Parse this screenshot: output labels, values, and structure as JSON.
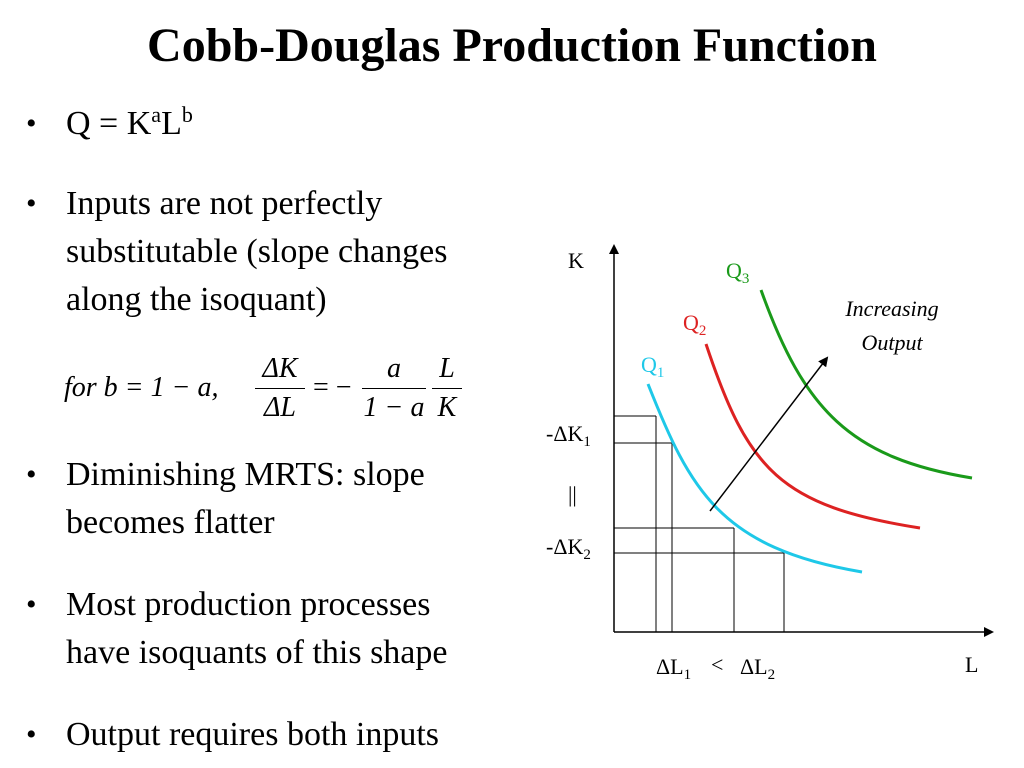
{
  "title": "Cobb-Douglas Production Function",
  "bullets": {
    "b1": {
      "q": "Q = K",
      "exp_a": "a",
      "l": "L",
      "exp_b": "b"
    },
    "b2": [
      "Inputs are not perfectly",
      "substitutable (slope changes",
      "along the isoquant)"
    ],
    "b3": [
      "Diminishing MRTS: slope",
      "becomes flatter"
    ],
    "b4": [
      "Most production processes",
      "have isoquants of this shape"
    ],
    "b5": "Output requires both inputs"
  },
  "formula": {
    "lhs": "for b = 1 − a,",
    "frac1_num": "ΔK",
    "frac1_den": "ΔL",
    "equals": "= −",
    "frac2_num": "a",
    "frac2_den": "1 − a",
    "frac3_num": "L",
    "frac3_den": "K"
  },
  "diagram": {
    "axis_y": "K",
    "axis_x": "L",
    "curves": [
      {
        "name": "Q",
        "sub": "1",
        "color": "#1ec8e8"
      },
      {
        "name": "Q",
        "sub": "2",
        "color": "#dd2222"
      },
      {
        "name": "Q",
        "sub": "3",
        "color": "#1a9a1a"
      }
    ],
    "arrow_label": [
      "Increasing",
      "Output"
    ],
    "dk1": {
      "pre": "-ΔK",
      "sub": "1"
    },
    "dk_equal": "||",
    "dk2": {
      "pre": "-ΔK",
      "sub": "2"
    },
    "dl1": {
      "pre": "ΔL",
      "sub": "1"
    },
    "dl_lt": "<",
    "dl2": {
      "pre": "ΔL",
      "sub": "2"
    }
  }
}
